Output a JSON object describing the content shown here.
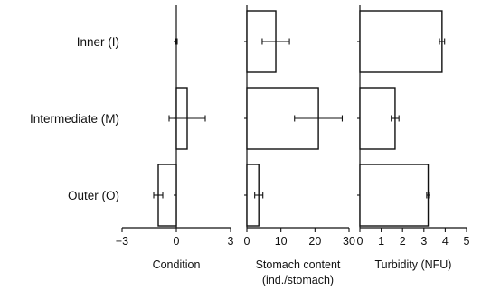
{
  "chart_data": {
    "type": "bar",
    "orientation": "horizontal",
    "categories": [
      "Inner (I)",
      "Intermediate (M)",
      "Outer (O)"
    ],
    "panels": [
      {
        "xlabel": [
          "Condition"
        ],
        "xlim": [
          -3,
          3
        ],
        "ticks": [
          -3,
          0,
          3
        ],
        "tick_labels": [
          "−3",
          "0",
          "3"
        ],
        "values": [
          0.0,
          0.6,
          -1.0
        ],
        "errors": [
          0.05,
          1.0,
          0.25
        ]
      },
      {
        "xlabel": [
          "Stomach content",
          "(ind./stomach)"
        ],
        "xlim": [
          0,
          30
        ],
        "ticks": [
          0,
          10,
          20,
          30
        ],
        "tick_labels": [
          "0",
          "10",
          "20",
          "30"
        ],
        "values": [
          8.5,
          21.0,
          3.5
        ],
        "errors": [
          4.0,
          7.0,
          1.2
        ]
      },
      {
        "xlabel": [
          "Turbidity (NFU)"
        ],
        "xlim": [
          0,
          5
        ],
        "ticks": [
          0,
          1,
          2,
          3,
          4,
          5
        ],
        "tick_labels": [
          "0",
          "1",
          "2",
          "3",
          "4",
          "5"
        ],
        "values": [
          3.85,
          1.65,
          3.2
        ],
        "errors": [
          0.12,
          0.18,
          0.07
        ]
      }
    ]
  }
}
